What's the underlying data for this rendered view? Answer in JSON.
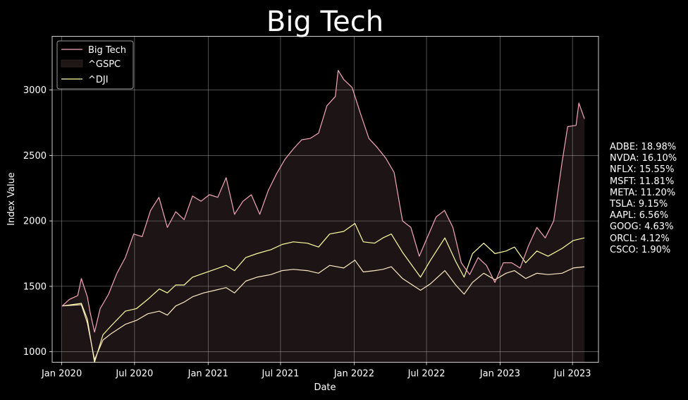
{
  "chart_data": {
    "type": "line",
    "title": "Big Tech",
    "xlabel": "Date",
    "ylabel": "Index Value",
    "grid": true,
    "legend_position": "top-left",
    "x_ticks": [
      "Jan 2020",
      "Jul 2020",
      "Jan 2021",
      "Jul 2021",
      "Jan 2022",
      "Jul 2022",
      "Jan 2023",
      "Jul 2023"
    ],
    "x_range": [
      "2019-12-08",
      "2023-09-04"
    ],
    "y_ticks": [
      1000,
      1500,
      2000,
      2500,
      3000
    ],
    "ylim": [
      920,
      3410
    ],
    "colors": {
      "Big Tech": "#f4a6b7",
      "^GSPC": "#1f1616",
      "^DJI": "#ffffa0"
    },
    "series": [
      {
        "name": "Big Tech",
        "style": "line",
        "x": [
          "2020-01-02",
          "2020-01-20",
          "2020-02-10",
          "2020-02-19",
          "2020-03-05",
          "2020-03-12",
          "2020-03-23",
          "2020-04-06",
          "2020-04-27",
          "2020-05-18",
          "2020-06-08",
          "2020-06-29",
          "2020-07-20",
          "2020-08-10",
          "2020-08-31",
          "2020-09-21",
          "2020-10-12",
          "2020-11-02",
          "2020-11-23",
          "2020-12-14",
          "2021-01-04",
          "2021-01-25",
          "2021-02-15",
          "2021-03-08",
          "2021-03-29",
          "2021-04-19",
          "2021-05-10",
          "2021-05-31",
          "2021-06-21",
          "2021-07-12",
          "2021-08-02",
          "2021-08-23",
          "2021-09-13",
          "2021-10-04",
          "2021-10-25",
          "2021-11-15",
          "2021-11-22",
          "2021-12-06",
          "2021-12-27",
          "2022-01-17",
          "2022-02-07",
          "2022-02-28",
          "2022-03-21",
          "2022-04-11",
          "2022-05-02",
          "2022-05-23",
          "2022-06-13",
          "2022-07-04",
          "2022-07-25",
          "2022-08-15",
          "2022-09-05",
          "2022-09-26",
          "2022-10-17",
          "2022-11-07",
          "2022-11-28",
          "2022-12-19",
          "2023-01-09",
          "2023-01-30",
          "2023-02-20",
          "2023-03-13",
          "2023-04-03",
          "2023-04-24",
          "2023-05-15",
          "2023-06-05",
          "2023-06-19",
          "2023-07-10",
          "2023-07-17",
          "2023-07-31"
        ],
        "y": [
          1350,
          1400,
          1430,
          1560,
          1420,
          1300,
          1150,
          1330,
          1440,
          1600,
          1720,
          1900,
          1880,
          2080,
          2180,
          1950,
          2070,
          2010,
          2190,
          2150,
          2200,
          2180,
          2330,
          2050,
          2150,
          2200,
          2050,
          2230,
          2360,
          2470,
          2550,
          2620,
          2630,
          2670,
          2880,
          2950,
          3150,
          3080,
          3020,
          2820,
          2630,
          2560,
          2480,
          2370,
          2000,
          1950,
          1730,
          1880,
          2030,
          2080,
          1950,
          1680,
          1590,
          1720,
          1660,
          1530,
          1680,
          1680,
          1640,
          1810,
          1950,
          1870,
          2000,
          2450,
          2720,
          2730,
          2900,
          2780
        ]
      },
      {
        "name": "^GSPC",
        "style": "line",
        "x": [
          "2020-01-02",
          "2020-02-19",
          "2020-03-05",
          "2020-03-23",
          "2020-04-13",
          "2020-05-04",
          "2020-06-08",
          "2020-07-06",
          "2020-08-03",
          "2020-09-01",
          "2020-09-21",
          "2020-10-12",
          "2020-11-02",
          "2020-11-23",
          "2020-12-21",
          "2021-01-18",
          "2021-02-15",
          "2021-03-08",
          "2021-04-05",
          "2021-05-03",
          "2021-06-07",
          "2021-07-05",
          "2021-08-02",
          "2021-09-06",
          "2021-10-04",
          "2021-11-01",
          "2021-12-06",
          "2022-01-03",
          "2022-01-24",
          "2022-02-21",
          "2022-03-14",
          "2022-04-04",
          "2022-05-02",
          "2022-06-16",
          "2022-07-11",
          "2022-08-16",
          "2022-09-12",
          "2022-10-03",
          "2022-10-24",
          "2022-11-21",
          "2022-12-19",
          "2023-01-16",
          "2023-02-06",
          "2023-03-06",
          "2023-04-03",
          "2023-05-01",
          "2023-06-05",
          "2023-07-03",
          "2023-07-31"
        ],
        "y": [
          1350,
          1360,
          1220,
          940,
          1090,
          1140,
          1210,
          1240,
          1290,
          1310,
          1280,
          1350,
          1380,
          1420,
          1450,
          1470,
          1490,
          1450,
          1540,
          1570,
          1590,
          1620,
          1630,
          1620,
          1600,
          1660,
          1640,
          1700,
          1610,
          1620,
          1630,
          1650,
          1560,
          1470,
          1520,
          1620,
          1510,
          1440,
          1530,
          1600,
          1550,
          1600,
          1620,
          1560,
          1600,
          1590,
          1600,
          1640,
          1650
        ]
      },
      {
        "name": "^DJI",
        "style": "line",
        "x": [
          "2020-01-02",
          "2020-02-19",
          "2020-03-05",
          "2020-03-23",
          "2020-04-13",
          "2020-05-04",
          "2020-06-08",
          "2020-07-06",
          "2020-08-03",
          "2020-09-01",
          "2020-09-21",
          "2020-10-12",
          "2020-11-02",
          "2020-11-23",
          "2020-12-21",
          "2021-01-18",
          "2021-02-15",
          "2021-03-08",
          "2021-04-05",
          "2021-05-03",
          "2021-06-07",
          "2021-07-05",
          "2021-08-02",
          "2021-09-06",
          "2021-10-04",
          "2021-11-01",
          "2021-12-06",
          "2022-01-03",
          "2022-01-24",
          "2022-02-21",
          "2022-03-14",
          "2022-04-04",
          "2022-05-02",
          "2022-06-16",
          "2022-07-11",
          "2022-08-16",
          "2022-09-12",
          "2022-10-03",
          "2022-10-24",
          "2022-11-21",
          "2022-12-19",
          "2023-01-16",
          "2023-02-06",
          "2023-03-06",
          "2023-04-03",
          "2023-05-01",
          "2023-06-05",
          "2023-07-03",
          "2023-07-31"
        ],
        "y": [
          1350,
          1370,
          1250,
          920,
          1130,
          1200,
          1310,
          1330,
          1400,
          1480,
          1450,
          1510,
          1510,
          1570,
          1600,
          1630,
          1660,
          1620,
          1720,
          1750,
          1780,
          1820,
          1840,
          1830,
          1800,
          1900,
          1920,
          1980,
          1840,
          1830,
          1870,
          1900,
          1760,
          1570,
          1700,
          1870,
          1690,
          1570,
          1750,
          1830,
          1750,
          1770,
          1800,
          1680,
          1770,
          1730,
          1790,
          1850,
          1870
        ]
      }
    ],
    "weights_panel": [
      "ADBE: 18.98%",
      "NVDA: 16.10%",
      "NFLX: 15.55%",
      "MSFT: 11.81%",
      "META: 11.20%",
      "TSLA: 9.15%",
      "AAPL: 6.56%",
      "GOOG: 4.63%",
      "ORCL: 4.12%",
      "CSCO: 1.90%"
    ]
  }
}
